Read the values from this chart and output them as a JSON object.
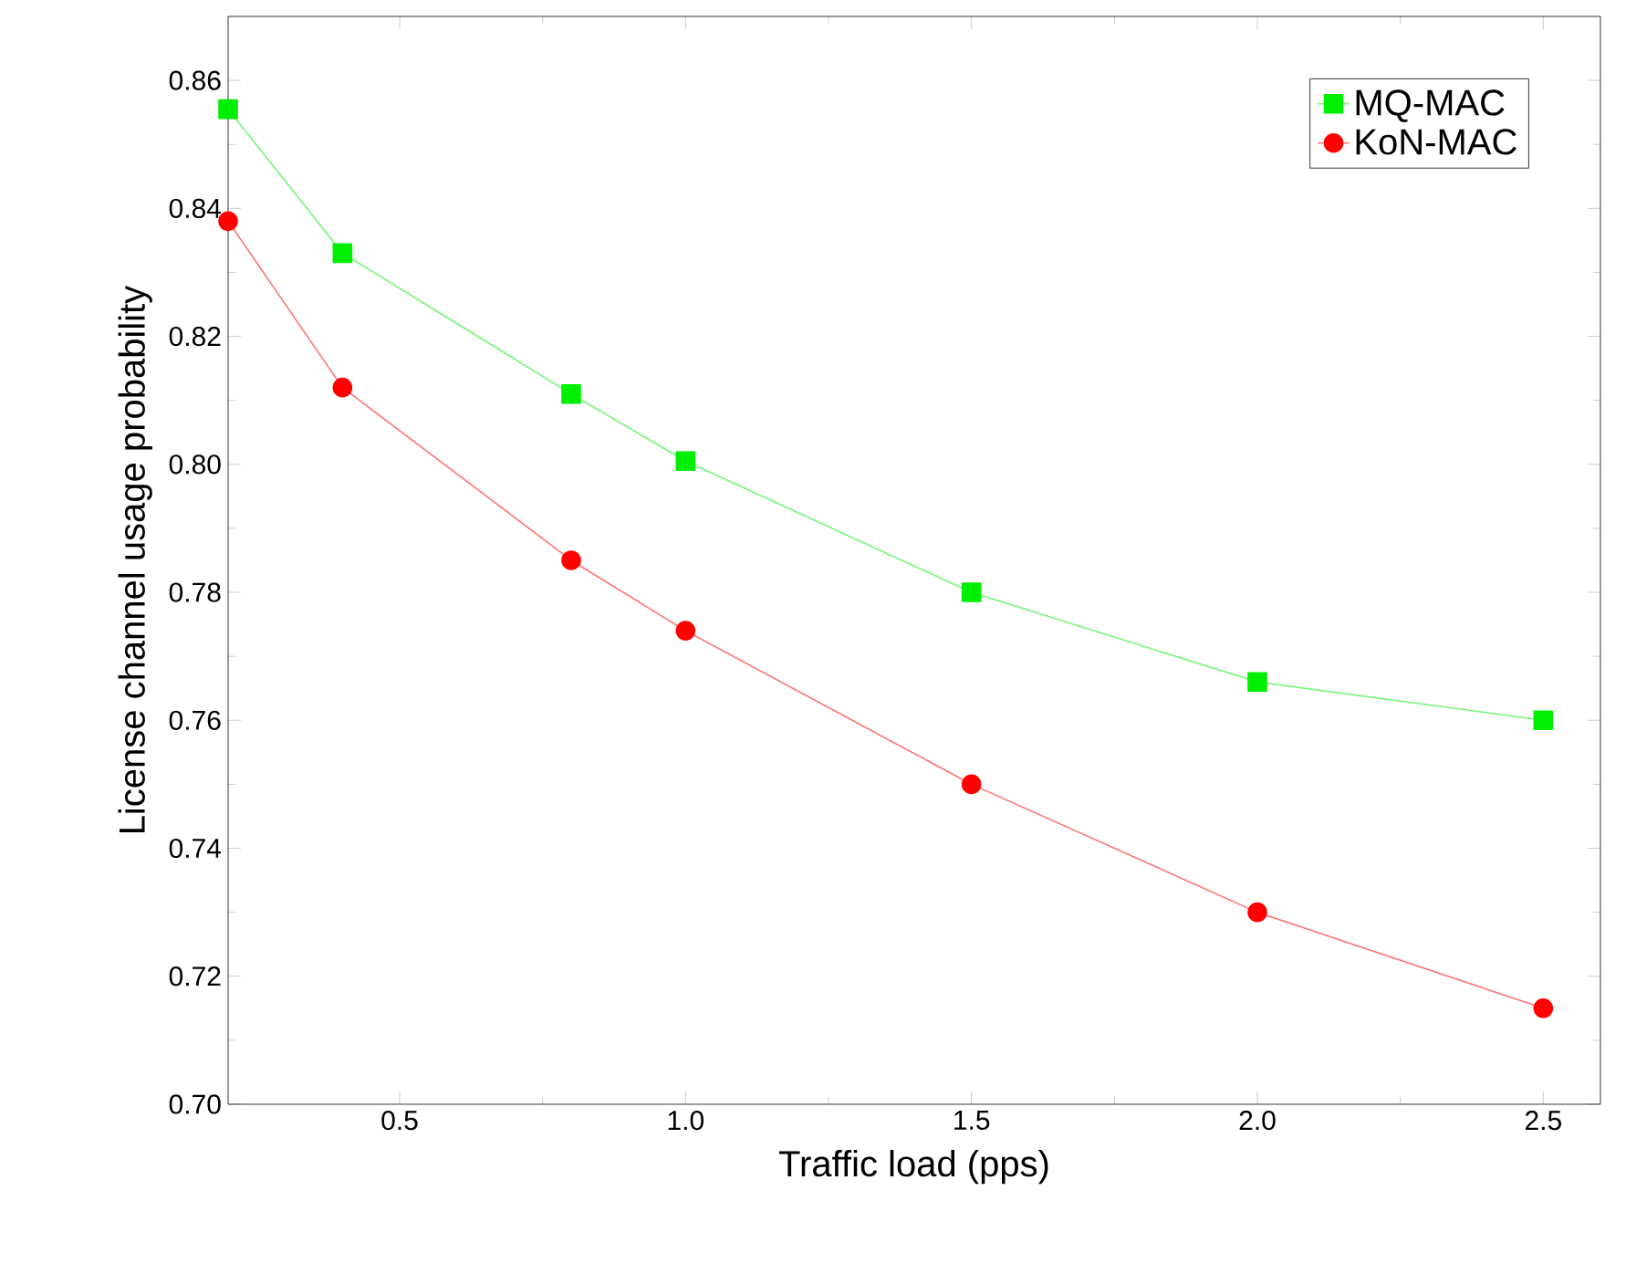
{
  "chart_data": {
    "type": "line",
    "xlabel": "Traffic load (pps)",
    "ylabel": "License channel usage probability",
    "x": [
      0.2,
      0.4,
      0.8,
      1.0,
      1.5,
      2.0,
      2.5
    ],
    "series": [
      {
        "name": "MQ-MAC",
        "color": "#00ee00",
        "marker": "square",
        "values": [
          0.8555,
          0.833,
          0.811,
          0.8005,
          0.78,
          0.766,
          0.76
        ]
      },
      {
        "name": "KoN-MAC",
        "color": "#ff0000",
        "marker": "circle",
        "values": [
          0.838,
          0.812,
          0.785,
          0.774,
          0.75,
          0.73,
          0.715
        ]
      }
    ],
    "xlim": [
      0.2,
      2.6
    ],
    "ylim": [
      0.7,
      0.87
    ],
    "xticks": [
      0.5,
      {
        "value": 1.0,
        "label": "1.0"
      },
      1.5,
      {
        "value": 2.0,
        "label": "2.0"
      },
      2.5
    ],
    "yticks": [
      {
        "value": 0.7,
        "label": "0.70"
      },
      0.72,
      0.74,
      0.76,
      0.78,
      {
        "value": 0.8,
        "label": "0.80"
      },
      0.82,
      0.84,
      0.86
    ],
    "grid": false,
    "legend": "top right",
    "line_style": "solid"
  }
}
